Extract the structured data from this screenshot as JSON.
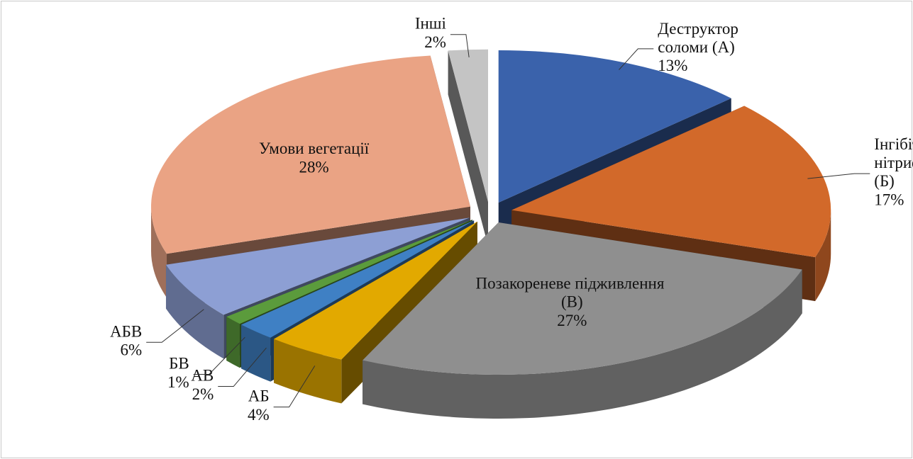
{
  "chart_data": {
    "type": "pie3d",
    "categories": [
      "Деструктор соломи (А)",
      "Інгібітор нітрифікації (Б)",
      "Позакореневе підживлення (В)",
      "АБ",
      "АВ",
      "БВ",
      "АБВ",
      "Умови вегетації",
      "Інші"
    ],
    "values": [
      13,
      17,
      27,
      4,
      2,
      1,
      6,
      28,
      2
    ],
    "value_labels": [
      "13%",
      "17%",
      "27%",
      "4%",
      "2%",
      "1%",
      "6%",
      "28%",
      "2%"
    ],
    "colors": [
      "#3a62ab",
      "#d2692a",
      "#8f8f8f",
      "#e2a900",
      "#3f80c4",
      "#5b9b3c",
      "#8d9fd4",
      "#eaa384",
      "#c4c4c4"
    ]
  }
}
